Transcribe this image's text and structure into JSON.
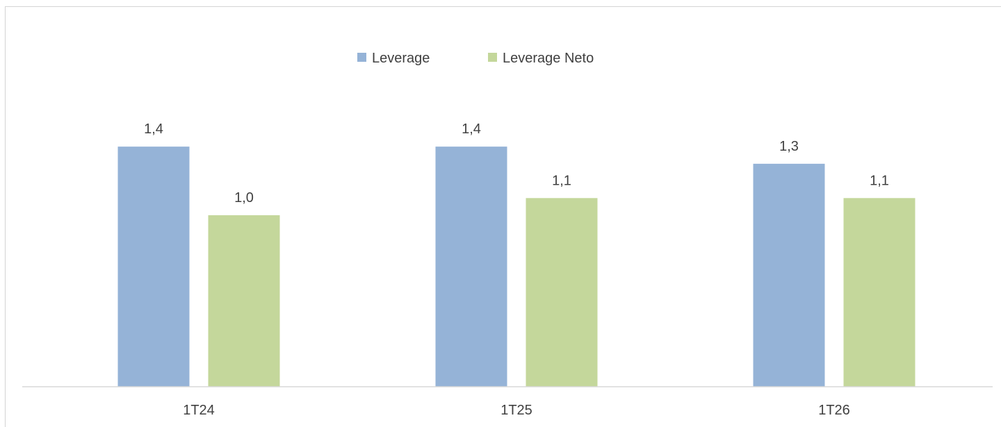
{
  "chart_data": {
    "type": "bar",
    "categories": [
      "1T24",
      "1T25",
      "1T26"
    ],
    "series": [
      {
        "name": "Leverage",
        "values": [
          1.4,
          1.4,
          1.3
        ],
        "labels": [
          "1,4",
          "1,4",
          "1,3"
        ],
        "color": "#95b3d7"
      },
      {
        "name": "Leverage Neto",
        "values": [
          1.0,
          1.1,
          1.1
        ],
        "labels": [
          "1,0",
          "1,1",
          "1,1"
        ],
        "color": "#c4d79b"
      }
    ],
    "ylim": [
      0,
      1.85
    ],
    "grid": false,
    "legend_position": "top-center",
    "axis_color": "#d9d9d9",
    "text_color": "#404040"
  }
}
